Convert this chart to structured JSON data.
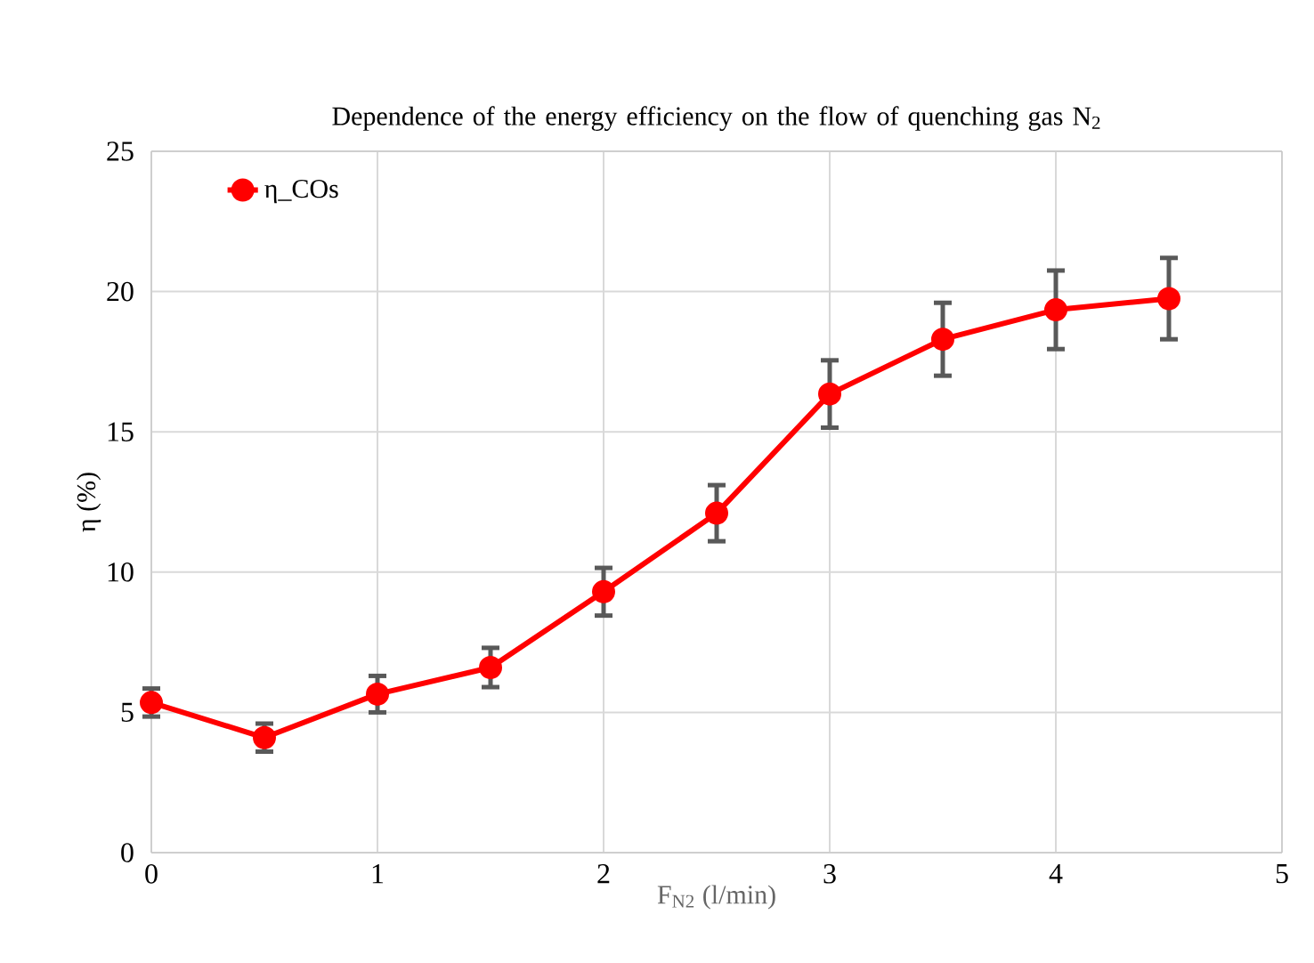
{
  "chart_data": {
    "type": "line",
    "title": "Dependence of the energy efficiency on the flow of quenching gas N$_{2}$",
    "xlabel": "F$_{N2}$ (l/min)",
    "ylabel": "η (%)",
    "x": [
      0,
      0.5,
      1,
      1.5,
      2,
      2.5,
      3,
      3.5,
      4,
      4.5
    ],
    "series": [
      {
        "name": "η_COs",
        "color": "#ff0000",
        "values": [
          5.35,
          4.1,
          5.65,
          6.6,
          9.3,
          12.1,
          16.35,
          18.3,
          19.35,
          19.75
        ],
        "errors": [
          0.5,
          0.5,
          0.65,
          0.7,
          0.85,
          1.0,
          1.2,
          1.3,
          1.4,
          1.45
        ]
      }
    ],
    "xlim": [
      0,
      5
    ],
    "xticks": [
      0,
      1,
      2,
      3,
      4,
      5
    ],
    "ylim": [
      0,
      25
    ],
    "yticks": [
      0,
      5,
      10,
      15,
      20,
      25
    ],
    "grid": true,
    "legend": "top left",
    "marker": "circle",
    "line_style": "solid"
  }
}
